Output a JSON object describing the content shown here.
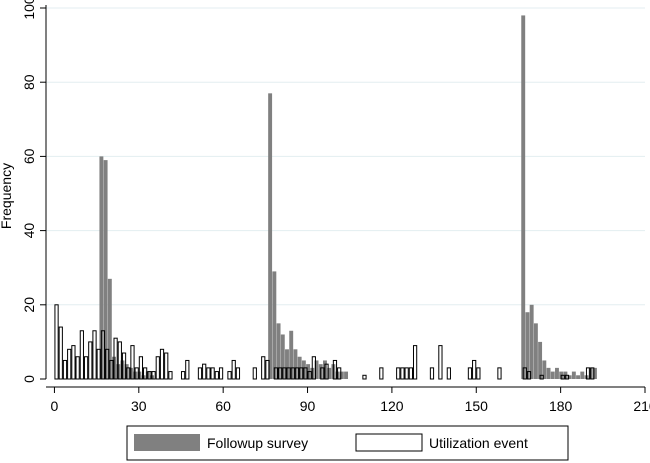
{
  "chart_data": {
    "type": "bar",
    "title": "",
    "xlabel": "",
    "ylabel": "Frequency",
    "xlim": [
      -3,
      210
    ],
    "ylim": [
      0,
      100
    ],
    "bin_width": 1.5,
    "xticks": [
      0,
      30,
      60,
      90,
      120,
      150,
      180,
      210
    ],
    "yticks": [
      0,
      20,
      40,
      60,
      80,
      100
    ],
    "grid": true,
    "legend_position": "bottom",
    "series": [
      {
        "name": "Followup survey",
        "color": "#808080",
        "style": "filled",
        "points": [
          [
            16,
            60
          ],
          [
            17.5,
            59
          ],
          [
            19,
            27
          ],
          [
            20.5,
            6
          ],
          [
            22,
            4
          ],
          [
            23.5,
            5
          ],
          [
            25,
            4
          ],
          [
            26.5,
            3
          ],
          [
            28,
            2
          ],
          [
            29.5,
            2
          ],
          [
            31,
            1
          ],
          [
            32.5,
            2
          ],
          [
            34,
            1
          ],
          [
            76,
            77
          ],
          [
            77.5,
            29
          ],
          [
            79,
            15
          ],
          [
            80.5,
            12
          ],
          [
            82,
            8
          ],
          [
            83.5,
            13
          ],
          [
            85,
            8
          ],
          [
            86.5,
            6
          ],
          [
            88,
            5
          ],
          [
            89.5,
            4
          ],
          [
            91,
            3
          ],
          [
            92.5,
            5
          ],
          [
            94,
            4
          ],
          [
            95.5,
            5
          ],
          [
            97,
            3
          ],
          [
            98.5,
            4
          ],
          [
            100,
            2
          ],
          [
            101.5,
            2
          ],
          [
            103,
            2
          ],
          [
            166,
            98
          ],
          [
            167.5,
            18
          ],
          [
            169,
            20
          ],
          [
            170.5,
            15
          ],
          [
            172,
            10
          ],
          [
            173.5,
            5
          ],
          [
            175,
            3
          ],
          [
            176.5,
            2
          ],
          [
            178,
            3
          ],
          [
            179.5,
            2
          ],
          [
            181,
            2
          ],
          [
            182.5,
            1
          ],
          [
            184,
            2
          ],
          [
            185.5,
            1
          ],
          [
            187,
            2
          ],
          [
            188.5,
            1
          ],
          [
            190,
            3
          ],
          [
            191.5,
            3
          ]
        ]
      },
      {
        "name": "Utilization event",
        "color": "#000000",
        "style": "outline",
        "points": [
          [
            0,
            20
          ],
          [
            1.5,
            14
          ],
          [
            3,
            5
          ],
          [
            4.5,
            8
          ],
          [
            6,
            9
          ],
          [
            7.5,
            6
          ],
          [
            9,
            13
          ],
          [
            10.5,
            6
          ],
          [
            12,
            10
          ],
          [
            13.5,
            13
          ],
          [
            15,
            8
          ],
          [
            16.5,
            13
          ],
          [
            18,
            8
          ],
          [
            19.5,
            5
          ],
          [
            21,
            11
          ],
          [
            22.5,
            10
          ],
          [
            24,
            7
          ],
          [
            25.5,
            3
          ],
          [
            27,
            9
          ],
          [
            28.5,
            3
          ],
          [
            30,
            6
          ],
          [
            31.5,
            3
          ],
          [
            33,
            2
          ],
          [
            34.5,
            2
          ],
          [
            36,
            6
          ],
          [
            37.5,
            8
          ],
          [
            39,
            7
          ],
          [
            40.5,
            2
          ],
          [
            45,
            2
          ],
          [
            46.5,
            5
          ],
          [
            51,
            3
          ],
          [
            52.5,
            4
          ],
          [
            54,
            3
          ],
          [
            55.5,
            3
          ],
          [
            57,
            2
          ],
          [
            58.5,
            3
          ],
          [
            61.5,
            2
          ],
          [
            63,
            5
          ],
          [
            64.5,
            3
          ],
          [
            70.5,
            3
          ],
          [
            73.5,
            6
          ],
          [
            75,
            5
          ],
          [
            78,
            3
          ],
          [
            79.5,
            3
          ],
          [
            81,
            3
          ],
          [
            82.5,
            3
          ],
          [
            84,
            3
          ],
          [
            85.5,
            3
          ],
          [
            87,
            3
          ],
          [
            88.5,
            3
          ],
          [
            90,
            2
          ],
          [
            91.5,
            6
          ],
          [
            94.5,
            3
          ],
          [
            96,
            4
          ],
          [
            99,
            5
          ],
          [
            100.5,
            3
          ],
          [
            109.5,
            1
          ],
          [
            115.5,
            3
          ],
          [
            121.5,
            3
          ],
          [
            123,
            3
          ],
          [
            124.5,
            3
          ],
          [
            126,
            3
          ],
          [
            127.5,
            9
          ],
          [
            133.5,
            3
          ],
          [
            136.5,
            9
          ],
          [
            139.5,
            3
          ],
          [
            147,
            3
          ],
          [
            148.5,
            5
          ],
          [
            150,
            3
          ],
          [
            157.5,
            3
          ],
          [
            166.5,
            3
          ],
          [
            168,
            2
          ],
          [
            172.5,
            1
          ],
          [
            180,
            1
          ],
          [
            181.5,
            1
          ],
          [
            189,
            3
          ],
          [
            190.5,
            3
          ]
        ]
      }
    ]
  }
}
